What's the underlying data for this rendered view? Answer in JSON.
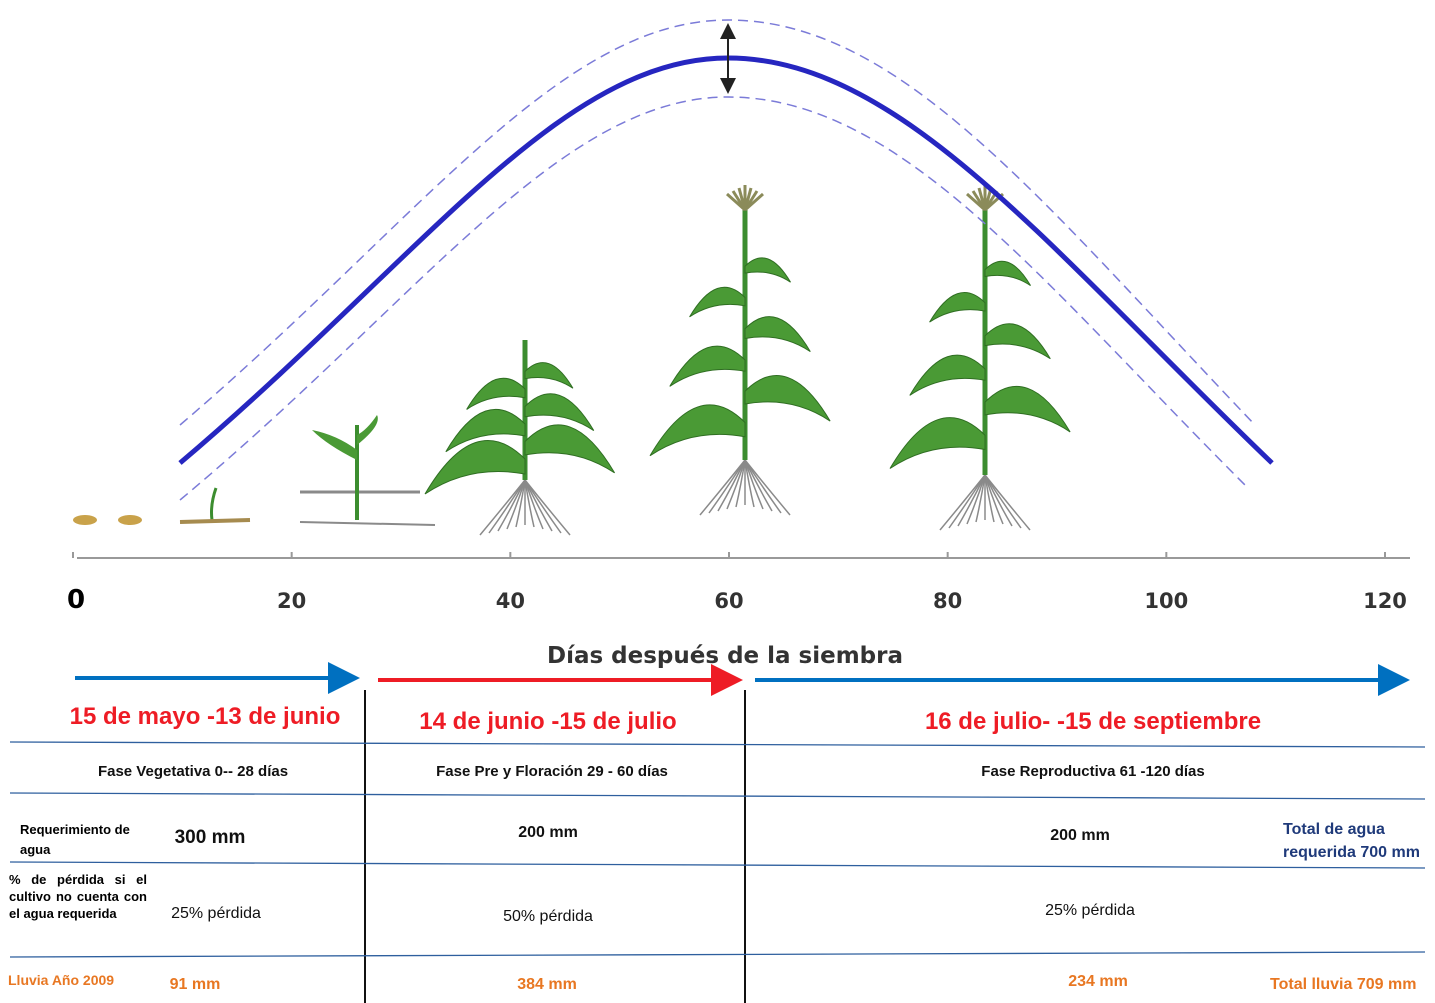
{
  "axis": {
    "ticks": [
      0,
      20,
      40,
      60,
      80,
      100,
      120
    ],
    "label": "Días después de la siembra"
  },
  "phases": [
    {
      "dates": "15 de mayo -13 de junio",
      "name": "Fase Vegetativa  0-- 28 días",
      "requirement": "300 mm",
      "loss": "25% pérdida",
      "rain": "91 mm"
    },
    {
      "dates": "14 de junio -15 de julio",
      "name": "Fase Pre y  Floración  29  - 60 días",
      "requirement": "200 mm",
      "loss": "50% pérdida",
      "rain": "384 mm"
    },
    {
      "dates": "16 de julio- -15 de  septiembre",
      "name": "Fase Reproductiva 61 -120 días",
      "requirement": "200 mm",
      "loss": "25% pérdida",
      "rain": "234 mm"
    }
  ],
  "row_labels": {
    "requirement": "Requerimiento de agua",
    "loss": "% de pérdida si el cultivo no cuenta con el agua requerida",
    "rain": "Lluvia  Año 2009"
  },
  "totals": {
    "requirement": "Total  de agua requerida 700 mm",
    "rain": "Total lluvia 709 mm"
  }
}
